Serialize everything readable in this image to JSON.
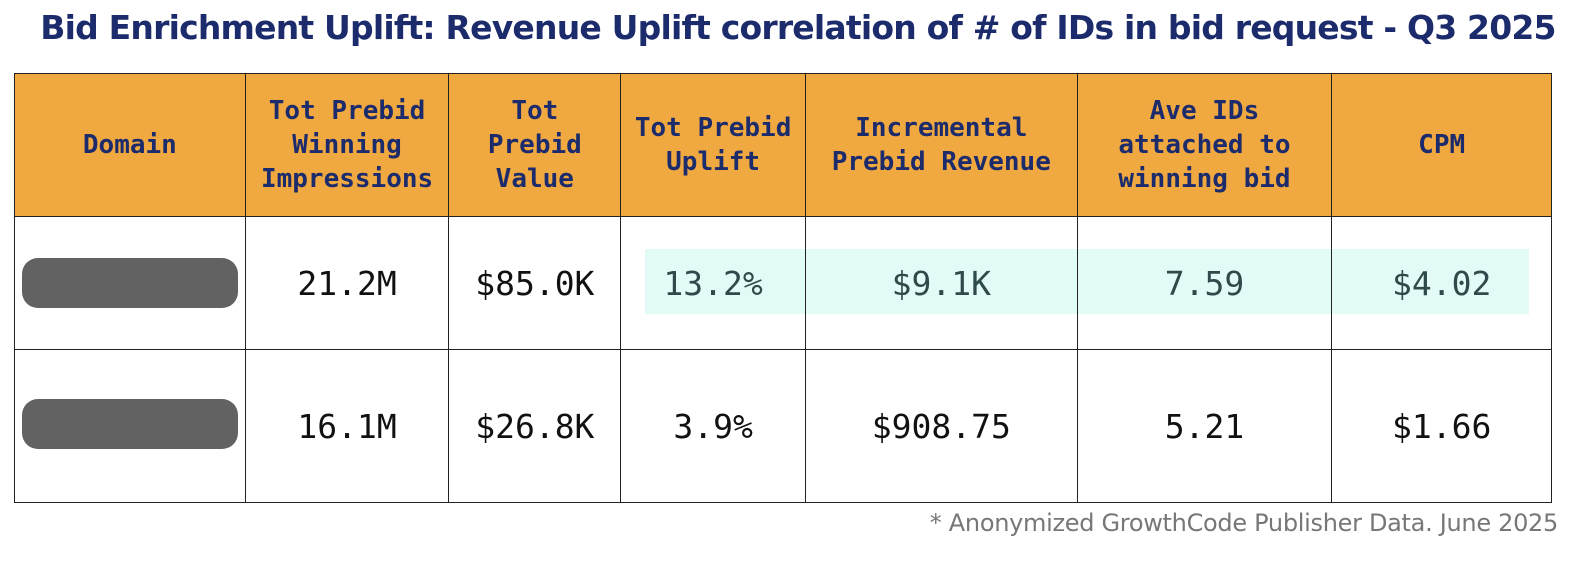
{
  "title": "Bid Enrichment Uplift: Revenue Uplift correlation of # of IDs in bid request - Q3 2025",
  "table": {
    "headers": [
      [
        "Domain"
      ],
      [
        "Tot Prebid",
        "Winning",
        "Impressions"
      ],
      [
        "Tot",
        "Prebid",
        "Value"
      ],
      [
        "Tot Prebid",
        "Uplift"
      ],
      [
        "Incremental",
        "Prebid Revenue"
      ],
      [
        "Ave IDs",
        "attached to",
        "winning bid"
      ],
      [
        "CPM"
      ]
    ],
    "rows": [
      {
        "domain": "",
        "impressions": "21.2M",
        "value": "$85.0K",
        "uplift": "13.2%",
        "incremental_revenue": "$9.1K",
        "ave_ids": "7.59",
        "cpm": "$4.02",
        "highlighted": true
      },
      {
        "domain": "",
        "impressions": "16.1M",
        "value": "$26.8K",
        "uplift": "3.9%",
        "incremental_revenue": "$908.75",
        "ave_ids": "5.21",
        "cpm": "$1.66",
        "highlighted": false
      }
    ]
  },
  "footnote": "* Anonymized GrowthCode Publisher Data. June 2025",
  "colors": {
    "title": "#1b2b6b",
    "header_bg": "#f0a840",
    "header_text": "#1b2b6b",
    "highlight_bg": "#e3fbf7",
    "redaction": "#626262"
  }
}
